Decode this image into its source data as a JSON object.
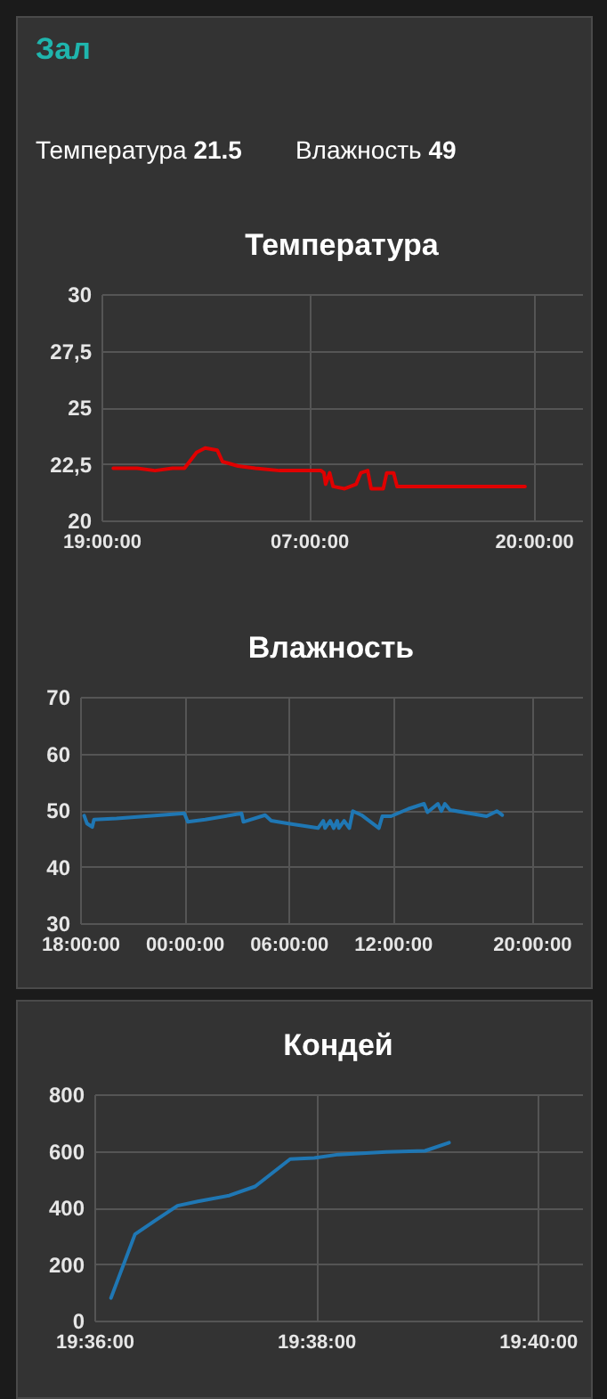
{
  "chart_data": [
    {
      "type": "other",
      "title": "Зал",
      "annotations": [
        "Температура",
        "21.5",
        "Влажность",
        "49"
      ]
    },
    {
      "type": "line",
      "title": "Температура",
      "color": "#e00000",
      "grid": true,
      "x": [
        "--01-01T19:41",
        "--01-01T21:04",
        "--01-01T22:06",
        "--01-01T23:06",
        "--01-01T23:48",
        "--01-02T00:30",
        "--01-02T01:00",
        "--01-02T01:42",
        "--01-02T02:00",
        "--01-02T02:54",
        "--01-02T03:54",
        "--01-02T05:18",
        "--01-02T07:42",
        "--01-02T07:52",
        "--01-02T07:58",
        "--01-02T08:12",
        "--01-02T08:24",
        "--01-02T09:04",
        "--01-02T09:44",
        "--01-02T10:00",
        "--01-02T10:24",
        "--01-02T10:36",
        "--01-02T11:18",
        "--01-02T11:30",
        "--01-02T11:54",
        "--01-02T12:06",
        "--01-02T13:12",
        "--01-02T14:30",
        "--01-02T15:54",
        "--01-02T18:00",
        "--01-02T19:30"
      ],
      "values": [
        22.3,
        22.3,
        22.2,
        22.3,
        22.3,
        23.0,
        23.2,
        23.1,
        22.6,
        22.4,
        22.3,
        22.2,
        22.2,
        22.1,
        21.6,
        22.1,
        21.5,
        21.4,
        21.6,
        22.1,
        22.2,
        21.4,
        21.4,
        22.1,
        22.1,
        21.5,
        21.5,
        21.5,
        21.5,
        21.5,
        21.5
      ],
      "xlim": [
        "--01-01T19:00",
        "--01-02T22:48"
      ],
      "xticks": [
        {
          "value": "--01-01T19:00",
          "label": "19:00:00"
        },
        {
          "value": "--01-02T07:00",
          "label": "07:00:00"
        },
        {
          "value": "--01-02T20:00",
          "label": "20:00:00"
        }
      ],
      "ylim": [
        20,
        30
      ],
      "yticks": [
        20,
        {
          "value": 22.5,
          "label": "22,5"
        },
        25,
        {
          "value": 27.5,
          "label": "27,5"
        },
        30
      ]
    },
    {
      "type": "line",
      "title": "Влажность",
      "color": "#1f77b4",
      "grid": true,
      "x": [
        "--01-01T18:14",
        "--01-01T18:24",
        "--01-01T18:42",
        "--01-01T18:48",
        "--01-01T20:06",
        "--01-02T00:00",
        "--01-02T00:12",
        "--01-02T01:12",
        "--01-02T03:18",
        "--01-02T03:24",
        "--01-02T04:39",
        "--01-02T05:00",
        "--01-02T06:00",
        "--01-02T07:42",
        "--01-02T08:00",
        "--01-02T08:06",
        "--01-02T08:24",
        "--01-02T08:36",
        "--01-02T08:48",
        "--01-02T08:54",
        "--01-02T09:12",
        "--01-02T09:30",
        "--01-02T09:42",
        "--01-02T10:12",
        "--01-02T11:12",
        "--01-02T11:24",
        "--01-02T11:54",
        "--01-02T12:54",
        "--01-02T13:48",
        "--01-02T14:00",
        "--01-02T14:36",
        "--01-02T14:48",
        "--01-02T15:00",
        "--01-02T15:18",
        "--01-02T17:24",
        "--01-02T18:00",
        "--01-02T18:18"
      ],
      "values": [
        49,
        47.6,
        47,
        48.3,
        48.5,
        49.4,
        47.9,
        48.3,
        49.4,
        47.9,
        49.1,
        48.1,
        47.6,
        46.8,
        48.1,
        46.8,
        48.1,
        46.8,
        48.1,
        46.8,
        48.1,
        46.8,
        49.8,
        49.1,
        46.8,
        48.9,
        48.9,
        50.2,
        51.1,
        49.6,
        51.1,
        49.8,
        51.1,
        50,
        48.9,
        49.8,
        49.1
      ],
      "xlim": [
        "--01-01T18:00",
        "--01-02T22:54"
      ],
      "xticks": [
        {
          "value": "--01-01T18:00",
          "label": "18:00:00"
        },
        {
          "value": "--01-02T00:00",
          "label": "00:00:00"
        },
        {
          "value": "--01-02T06:00",
          "label": "06:00:00"
        },
        {
          "value": "--01-02T12:00",
          "label": "12:00:00"
        },
        {
          "value": "--01-02T20:00",
          "label": "20:00:00"
        }
      ],
      "ylim": [
        30,
        70
      ],
      "yticks": [
        30,
        40,
        50,
        60,
        70
      ]
    },
    {
      "type": "line",
      "title": "Кондей",
      "color": "#1f77b4",
      "grid": true,
      "x": [
        "--01-02T19:36:09",
        "--01-02T19:36:22",
        "--01-02T19:36:33",
        "--01-02T19:36:45",
        "--01-02T19:36:56",
        "--01-02T19:37:13",
        "--01-02T19:37:27",
        "--01-02T19:37:46",
        "--01-02T19:37:59",
        "--01-02T19:38:12",
        "--01-02T19:38:38",
        "--01-02T19:38:59",
        "--01-02T19:39:12"
      ],
      "values": [
        80,
        305,
        354,
        406,
        421,
        442,
        474,
        571,
        575,
        587,
        596,
        600,
        629
      ],
      "xlim": [
        "--01-02T19:36",
        "--01-02T19:40:24"
      ],
      "xticks": [
        {
          "value": "--01-02T19:36",
          "label": "19:36:00"
        },
        {
          "value": "--01-02T19:38",
          "label": "19:38:00"
        },
        {
          "value": "--01-02T19:40",
          "label": "19:40:00"
        }
      ],
      "ylim": [
        0,
        800
      ],
      "yticks": [
        0,
        200,
        400,
        600,
        800
      ]
    }
  ]
}
